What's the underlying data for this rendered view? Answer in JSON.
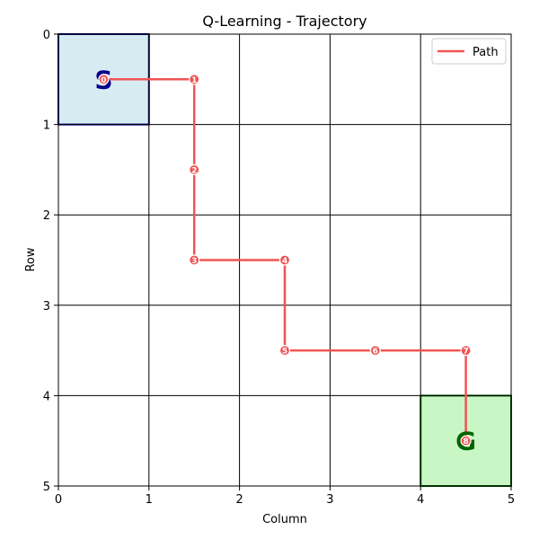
{
  "chart_data": {
    "type": "line",
    "title": "Q-Learning - Trajectory",
    "xlabel": "Column",
    "ylabel": "Row",
    "xlim": [
      0,
      5
    ],
    "ylim": [
      5,
      0
    ],
    "y_inverted": true,
    "x_ticks": [
      "0",
      "1",
      "2",
      "3",
      "4",
      "5"
    ],
    "y_ticks": [
      "0",
      "1",
      "2",
      "3",
      "4",
      "5"
    ],
    "grid": true,
    "legend": {
      "placement": "top-right",
      "entries": [
        "Path"
      ]
    },
    "cells": [
      {
        "label": "S",
        "row": 0,
        "col": 0,
        "fill": "#d6ebf2",
        "edge": "#00008b",
        "text_color": "#00008b"
      },
      {
        "label": "G",
        "row": 4,
        "col": 4,
        "fill": "#c8f7c5",
        "edge": "#006400",
        "text_color": "#006400"
      }
    ],
    "series": [
      {
        "name": "Path",
        "color": "#f05454",
        "points": [
          {
            "step": "0",
            "x": 0.5,
            "y": 0.5
          },
          {
            "step": "1",
            "x": 1.5,
            "y": 0.5
          },
          {
            "step": "2",
            "x": 1.5,
            "y": 1.5
          },
          {
            "step": "3",
            "x": 1.5,
            "y": 2.5
          },
          {
            "step": "4",
            "x": 2.5,
            "y": 2.5
          },
          {
            "step": "5",
            "x": 2.5,
            "y": 3.5
          },
          {
            "step": "6",
            "x": 3.5,
            "y": 3.5
          },
          {
            "step": "7",
            "x": 4.5,
            "y": 3.5
          },
          {
            "step": "8",
            "x": 4.5,
            "y": 4.5
          }
        ]
      }
    ]
  }
}
